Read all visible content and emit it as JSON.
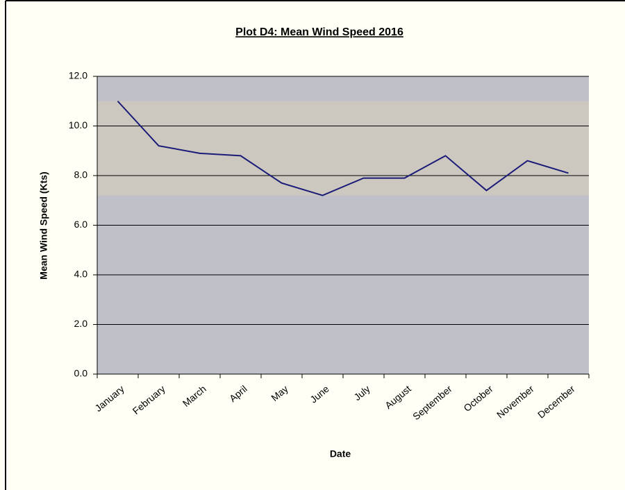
{
  "chart_data": {
    "type": "line",
    "title": "Plot D4: Mean Wind Speed 2016",
    "x_label": "Date",
    "y_label": "Mean Wind Speed (Kts)",
    "categories": [
      "January",
      "February",
      "March",
      "April",
      "May",
      "June",
      "July",
      "August",
      "September",
      "October",
      "November",
      "December"
    ],
    "series": [
      {
        "name": "Mean Wind Speed",
        "color": "#1a1a78",
        "values": [
          11.0,
          9.2,
          8.9,
          8.8,
          7.7,
          7.2,
          7.9,
          7.9,
          8.8,
          7.4,
          8.6,
          8.1
        ]
      }
    ],
    "shaded_range": [
      7.2,
      11.0
    ],
    "ylim": [
      0,
      12
    ],
    "yticks": [
      {
        "value": 0,
        "label": "0.0"
      },
      {
        "value": 2,
        "label": "2.0"
      },
      {
        "value": 4,
        "label": "4.0"
      },
      {
        "value": 6,
        "label": "6.0"
      },
      {
        "value": 8,
        "label": "8.0"
      },
      {
        "value": 10,
        "label": "10.0"
      },
      {
        "value": 12,
        "label": "12.0"
      }
    ],
    "grid": true
  }
}
